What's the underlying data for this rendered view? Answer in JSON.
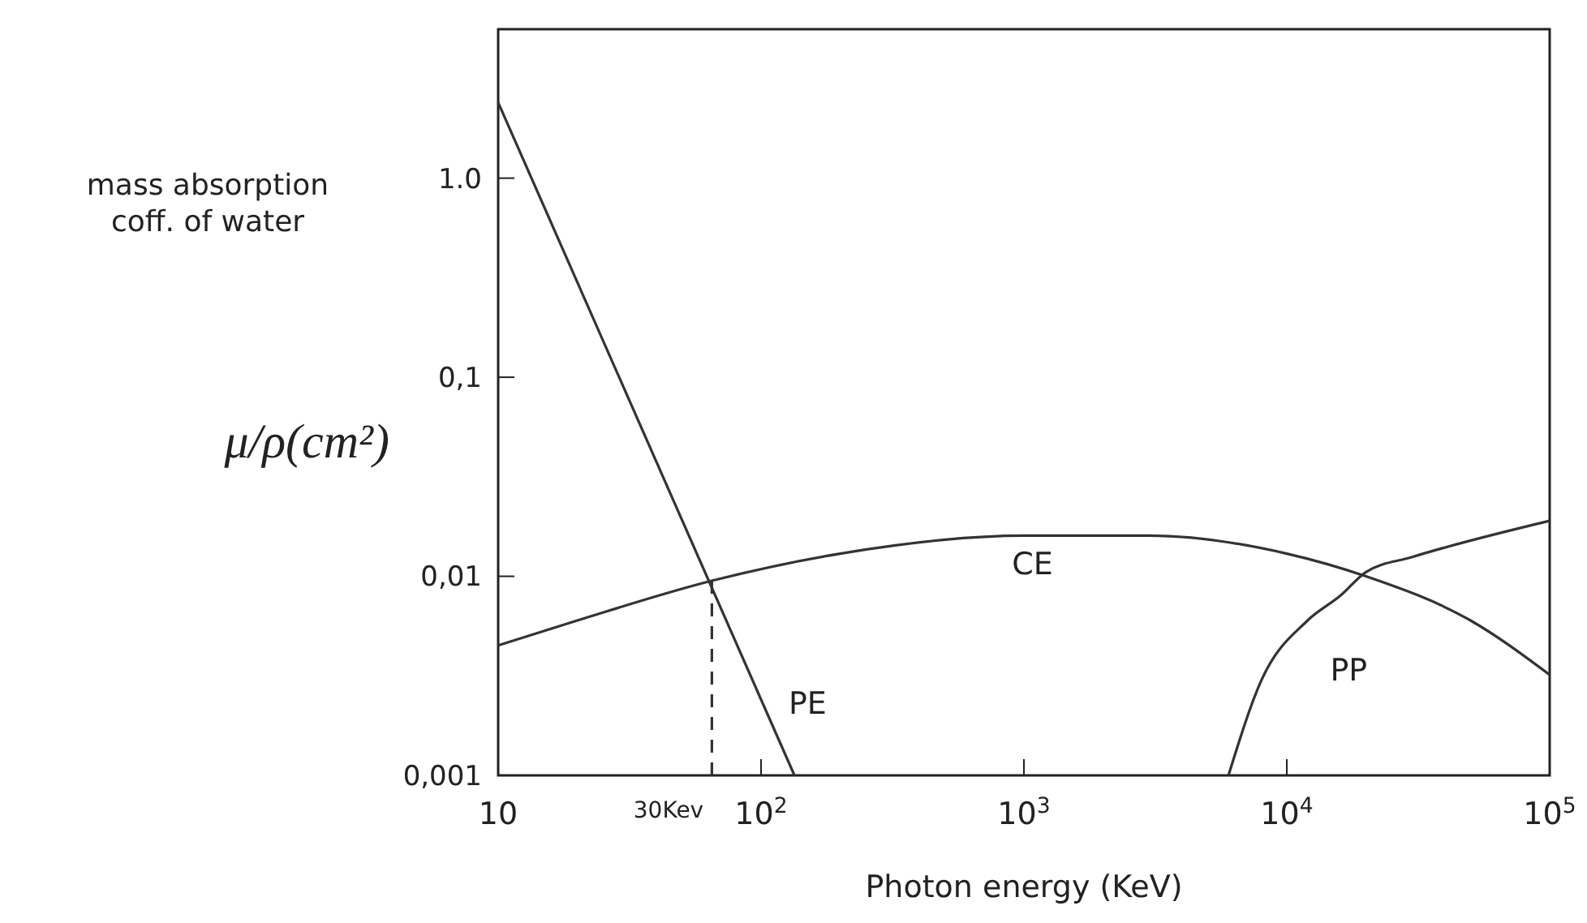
{
  "chart_data": {
    "type": "line",
    "xlabel": "Photon energy (KeV)",
    "ylabel": "mass absorption coff. of water",
    "log": "xy",
    "grid": false,
    "xlim": [
      10,
      100000
    ],
    "xticks": [
      10,
      {
        "value": 100,
        "label": "10$^{2}$"
      },
      {
        "value": 1000,
        "label": "10$^{3}$"
      },
      {
        "value": 10000,
        "label": "10$^{4}$"
      },
      {
        "value": 100000,
        "label": "10$^{5}$"
      }
    ],
    "ylim": [
      0.001,
      5.6
    ],
    "yticks": [
      {
        "value": 0.001,
        "label": "0,001"
      },
      {
        "value": 0.01,
        "label": "0,01"
      },
      {
        "value": 0.1,
        "label": "0,1"
      },
      {
        "value": 1,
        "label": "1.0"
      }
    ],
    "series": [
      {
        "name": "PE",
        "color": "#333333",
        "x": [
          10,
          134
        ],
        "values": [
          2.4,
          0.001
        ]
      },
      {
        "name": "CE",
        "color": "#333333",
        "x": [
          10,
          20,
          65,
          200,
          1000,
          3000,
          10000,
          20000,
          50000,
          100000
        ],
        "values": [
          0.0045,
          0.006,
          0.0095,
          0.013,
          0.016,
          0.016,
          0.013,
          0.01,
          0.006,
          0.0032
        ]
      },
      {
        "name": "PP",
        "color": "#333333",
        "x": [
          6000,
          8000,
          12000,
          16000,
          20000,
          30000,
          100000
        ],
        "values": [
          0.001,
          0.003,
          0.006,
          0.008,
          0.0105,
          0.0125,
          0.019
        ]
      },
      {
        "color": "#333333",
        "line_style": "dashed",
        "x": [
          65,
          65
        ],
        "values": [
          0.001,
          0.0095
        ]
      }
    ],
    "annotations": [
      "μ/ρ(cm²)",
      "30Kev"
    ]
  }
}
